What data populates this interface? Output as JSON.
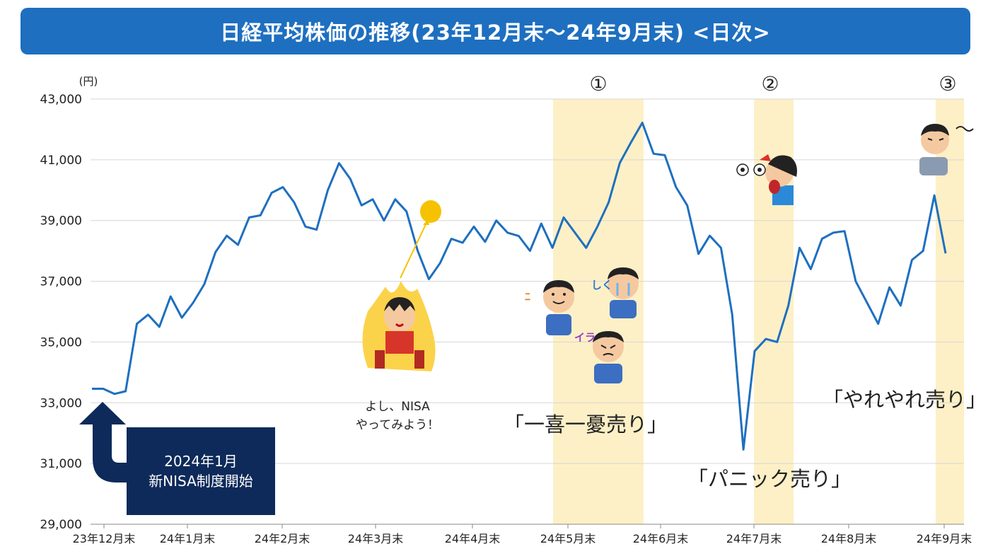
{
  "title": "日経平均株価の推移(23年12月末～24年9月末) <日次>",
  "unit_label": "(円)",
  "y_tick_labels": [
    "43,000",
    "41,000",
    "39,000",
    "37,000",
    "35,000",
    "33,000",
    "31,000",
    "29,000"
  ],
  "x_tick_labels": [
    "23年12月末",
    "24年1月末",
    "24年2月末",
    "24年3月末",
    "24年4月末",
    "24年5月末",
    "24年6月末",
    "24年7月末",
    "24年8月末",
    "24年9月末"
  ],
  "markers": [
    "①",
    "②",
    "③"
  ],
  "callouts": {
    "ichiki": "「一喜一憂売り」",
    "panic": "「パニック売り」",
    "yareyare": "「やれやれ売り」"
  },
  "speech": {
    "line1": "よし、NISA",
    "line2": "やってみよう！"
  },
  "nisa_box": {
    "line1": "2024年1月",
    "line2": "新NISA制度開始"
  },
  "colors": {
    "line": "#1e6fc0",
    "highlight": "#fdf0c6",
    "title_bg": "#1e6fc0",
    "box_bg": "#0d2a5a",
    "dot": "#f6c200"
  },
  "icons": [
    "fire-person-icon",
    "happy-person-icon",
    "crying-person-icon",
    "angry-person-icon",
    "panic-person-icon",
    "tired-person-icon",
    "up-arrow-icon"
  ],
  "chart_data": {
    "type": "line",
    "title": "日経平均株価の推移(23年12月末～24年9月末) <日次>",
    "ylabel": "(円)",
    "ylim": [
      29000,
      43000
    ],
    "categories": [
      "23年12月末",
      "24年1月末",
      "24年2月末",
      "24年3月末",
      "24年4月末",
      "24年5月末",
      "24年6月末",
      "24年7月末",
      "24年8月末",
      "24年9月末"
    ],
    "grid": true,
    "highlight_periods": [
      "①",
      "②",
      "③"
    ],
    "series": [
      {
        "values": [
          {
            "x": "23年12月末",
            "y": 33460
          },
          {
            "x": "23年12月末+",
            "y": 33460
          },
          {
            "x": "24年1月初",
            "y": 33290
          },
          {
            "x": "24年1月上旬",
            "y": 33380
          },
          {
            "x": "24年1月上旬",
            "y": 35600
          },
          {
            "x": "24年1月中旬",
            "y": 35900
          },
          {
            "x": "24年1月中旬",
            "y": 35500
          },
          {
            "x": "24年1月中旬",
            "y": 36500
          },
          {
            "x": "24年1月下旬",
            "y": 35800
          },
          {
            "x": "24年1月末",
            "y": 36290
          },
          {
            "x": "24年2月上旬",
            "y": 36900
          },
          {
            "x": "24年2月上旬",
            "y": 37960
          },
          {
            "x": "24年2月中旬",
            "y": 38500
          },
          {
            "x": "24年2月中旬",
            "y": 38200
          },
          {
            "x": "24年2月下旬",
            "y": 39100
          },
          {
            "x": "24年2月末",
            "y": 39170
          },
          {
            "x": "24年2月末+",
            "y": 39910
          },
          {
            "x": "24年3月上旬",
            "y": 40100
          },
          {
            "x": "24年3月上旬",
            "y": 39600
          },
          {
            "x": "24年3月中旬",
            "y": 38800
          },
          {
            "x": "24年3月中旬",
            "y": 38700
          },
          {
            "x": "24年3月下旬",
            "y": 40000
          },
          {
            "x": "24年3月下旬",
            "y": 40890
          },
          {
            "x": "24年3月末",
            "y": 40370
          },
          {
            "x": "24年4月上旬",
            "y": 39500
          },
          {
            "x": "24年4月上旬",
            "y": 39700
          },
          {
            "x": "24年4月中旬",
            "y": 39000
          },
          {
            "x": "24年4月中旬",
            "y": 39700
          },
          {
            "x": "24年4月中旬",
            "y": 39300
          },
          {
            "x": "24年4月中旬",
            "y": 38000
          },
          {
            "x": "24年4月中旬",
            "y": 37070
          },
          {
            "x": "24年4月下旬",
            "y": 37600
          },
          {
            "x": "24年4月下旬",
            "y": 38400
          },
          {
            "x": "24年4月末",
            "y": 38270
          },
          {
            "x": "24年5月上旬",
            "y": 38800
          },
          {
            "x": "24年5月中旬",
            "y": 38300
          },
          {
            "x": "24年5月中旬",
            "y": 39000
          },
          {
            "x": "24年5月下旬",
            "y": 38600
          },
          {
            "x": "24年5月末",
            "y": 38490
          },
          {
            "x": "24年6月上旬",
            "y": 38000
          },
          {
            "x": "24年6月上旬",
            "y": 38900
          },
          {
            "x": "24年6月中旬",
            "y": 38100
          },
          {
            "x": "24年6月中旬",
            "y": 39100
          },
          {
            "x": "24年6月下旬",
            "y": 38600
          },
          {
            "x": "24年6月下旬",
            "y": 38100
          },
          {
            "x": "24年6月末",
            "y": 38800
          },
          {
            "x": "24年6月末+",
            "y": 39600
          },
          {
            "x": "24年7月上旬",
            "y": 40900
          },
          {
            "x": "24年7月上旬",
            "y": 41580
          },
          {
            "x": "24年7月中旬",
            "y": 42220
          },
          {
            "x": "24年7月中旬",
            "y": 41200
          },
          {
            "x": "24年7月中旬",
            "y": 41150
          },
          {
            "x": "24年7月中旬",
            "y": 40100
          },
          {
            "x": "24年7月下旬",
            "y": 39500
          },
          {
            "x": "24年7月下旬",
            "y": 37900
          },
          {
            "x": "24年7月末",
            "y": 38500
          },
          {
            "x": "24年8月1日",
            "y": 38100
          },
          {
            "x": "24年8月2日",
            "y": 35900
          },
          {
            "x": "24年8月5日",
            "y": 31460
          },
          {
            "x": "24年8月6日",
            "y": 34700
          },
          {
            "x": "24年8月7日",
            "y": 35100
          },
          {
            "x": "24年8月上旬",
            "y": 35000
          },
          {
            "x": "24年8月中旬",
            "y": 36200
          },
          {
            "x": "24年8月中旬",
            "y": 38100
          },
          {
            "x": "24年8月中旬",
            "y": 37400
          },
          {
            "x": "24年8月下旬",
            "y": 38400
          },
          {
            "x": "24年8月下旬",
            "y": 38600
          },
          {
            "x": "24年8月末",
            "y": 38650
          },
          {
            "x": "24年9月上旬",
            "y": 37000
          },
          {
            "x": "24年9月上旬",
            "y": 36300
          },
          {
            "x": "24年9月中旬",
            "y": 35600
          },
          {
            "x": "24年9月中旬",
            "y": 36800
          },
          {
            "x": "24年9月中旬",
            "y": 36200
          },
          {
            "x": "24年9月下旬",
            "y": 37700
          },
          {
            "x": "24年9月下旬",
            "y": 38000
          },
          {
            "x": "24年9月下旬",
            "y": 39830
          },
          {
            "x": "24年9月末",
            "y": 37920
          }
        ]
      }
    ]
  }
}
